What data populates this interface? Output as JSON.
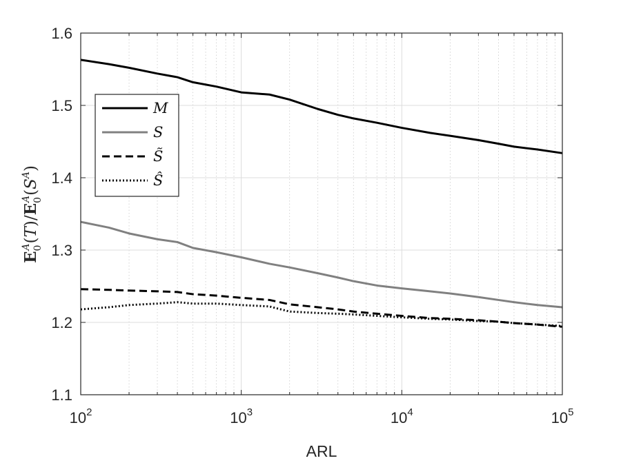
{
  "chart_data": {
    "type": "line",
    "xlabel": "ARL",
    "ylabel": "E_0^A(T)/E_0^A(S^A)",
    "xscale": "log",
    "xlim": [
      100,
      100000
    ],
    "ylim": [
      1.1,
      1.6
    ],
    "grid": true,
    "legend_position": "top-left",
    "x_tick_labels": [
      {
        "base": "10",
        "exp": "2"
      },
      {
        "base": "10",
        "exp": "3"
      },
      {
        "base": "10",
        "exp": "4"
      },
      {
        "base": "10",
        "exp": "5"
      }
    ],
    "y_ticks": [
      "1.1",
      "1.2",
      "1.3",
      "1.4",
      "1.5",
      "1.6"
    ],
    "series": [
      {
        "name": "M",
        "color": "#000000",
        "dash": "solid",
        "x": [
          100,
          150,
          200,
          300,
          400,
          500,
          700,
          1000,
          1500,
          2000,
          3000,
          4000,
          5000,
          7000,
          10000,
          15000,
          20000,
          30000,
          40000,
          50000,
          70000,
          100000
        ],
        "y": [
          1.563,
          1.557,
          1.552,
          1.544,
          1.539,
          1.532,
          1.526,
          1.518,
          1.515,
          1.508,
          1.495,
          1.487,
          1.482,
          1.476,
          1.469,
          1.462,
          1.458,
          1.452,
          1.447,
          1.443,
          1.439,
          1.434
        ]
      },
      {
        "name": "S",
        "color": "#808080",
        "dash": "solid",
        "x": [
          100,
          150,
          200,
          300,
          400,
          500,
          700,
          1000,
          1500,
          2000,
          3000,
          4000,
          5000,
          7000,
          10000,
          15000,
          20000,
          30000,
          40000,
          50000,
          70000,
          100000
        ],
        "y": [
          1.339,
          1.331,
          1.323,
          1.315,
          1.311,
          1.303,
          1.297,
          1.29,
          1.281,
          1.276,
          1.268,
          1.262,
          1.257,
          1.251,
          1.247,
          1.243,
          1.24,
          1.235,
          1.231,
          1.228,
          1.224,
          1.221
        ]
      },
      {
        "name": "S̃",
        "color": "#000000",
        "dash": "dashed",
        "x": [
          100,
          150,
          200,
          300,
          400,
          500,
          700,
          1000,
          1500,
          2000,
          3000,
          4000,
          5000,
          7000,
          10000,
          15000,
          20000,
          30000,
          40000,
          50000,
          70000,
          100000
        ],
        "y": [
          1.246,
          1.245,
          1.244,
          1.243,
          1.242,
          1.239,
          1.237,
          1.234,
          1.231,
          1.225,
          1.221,
          1.218,
          1.215,
          1.212,
          1.209,
          1.206,
          1.205,
          1.203,
          1.201,
          1.199,
          1.197,
          1.194
        ]
      },
      {
        "name": "Ŝ",
        "color": "#000000",
        "dash": "dotted",
        "x": [
          100,
          150,
          200,
          300,
          400,
          500,
          700,
          1000,
          1500,
          2000,
          3000,
          4000,
          5000,
          7000,
          10000,
          15000,
          20000,
          30000,
          40000,
          50000,
          70000,
          100000
        ],
        "y": [
          1.218,
          1.221,
          1.224,
          1.226,
          1.228,
          1.226,
          1.226,
          1.224,
          1.222,
          1.215,
          1.213,
          1.212,
          1.211,
          1.209,
          1.207,
          1.205,
          1.204,
          1.202,
          1.201,
          1.199,
          1.197,
          1.195
        ]
      }
    ]
  }
}
